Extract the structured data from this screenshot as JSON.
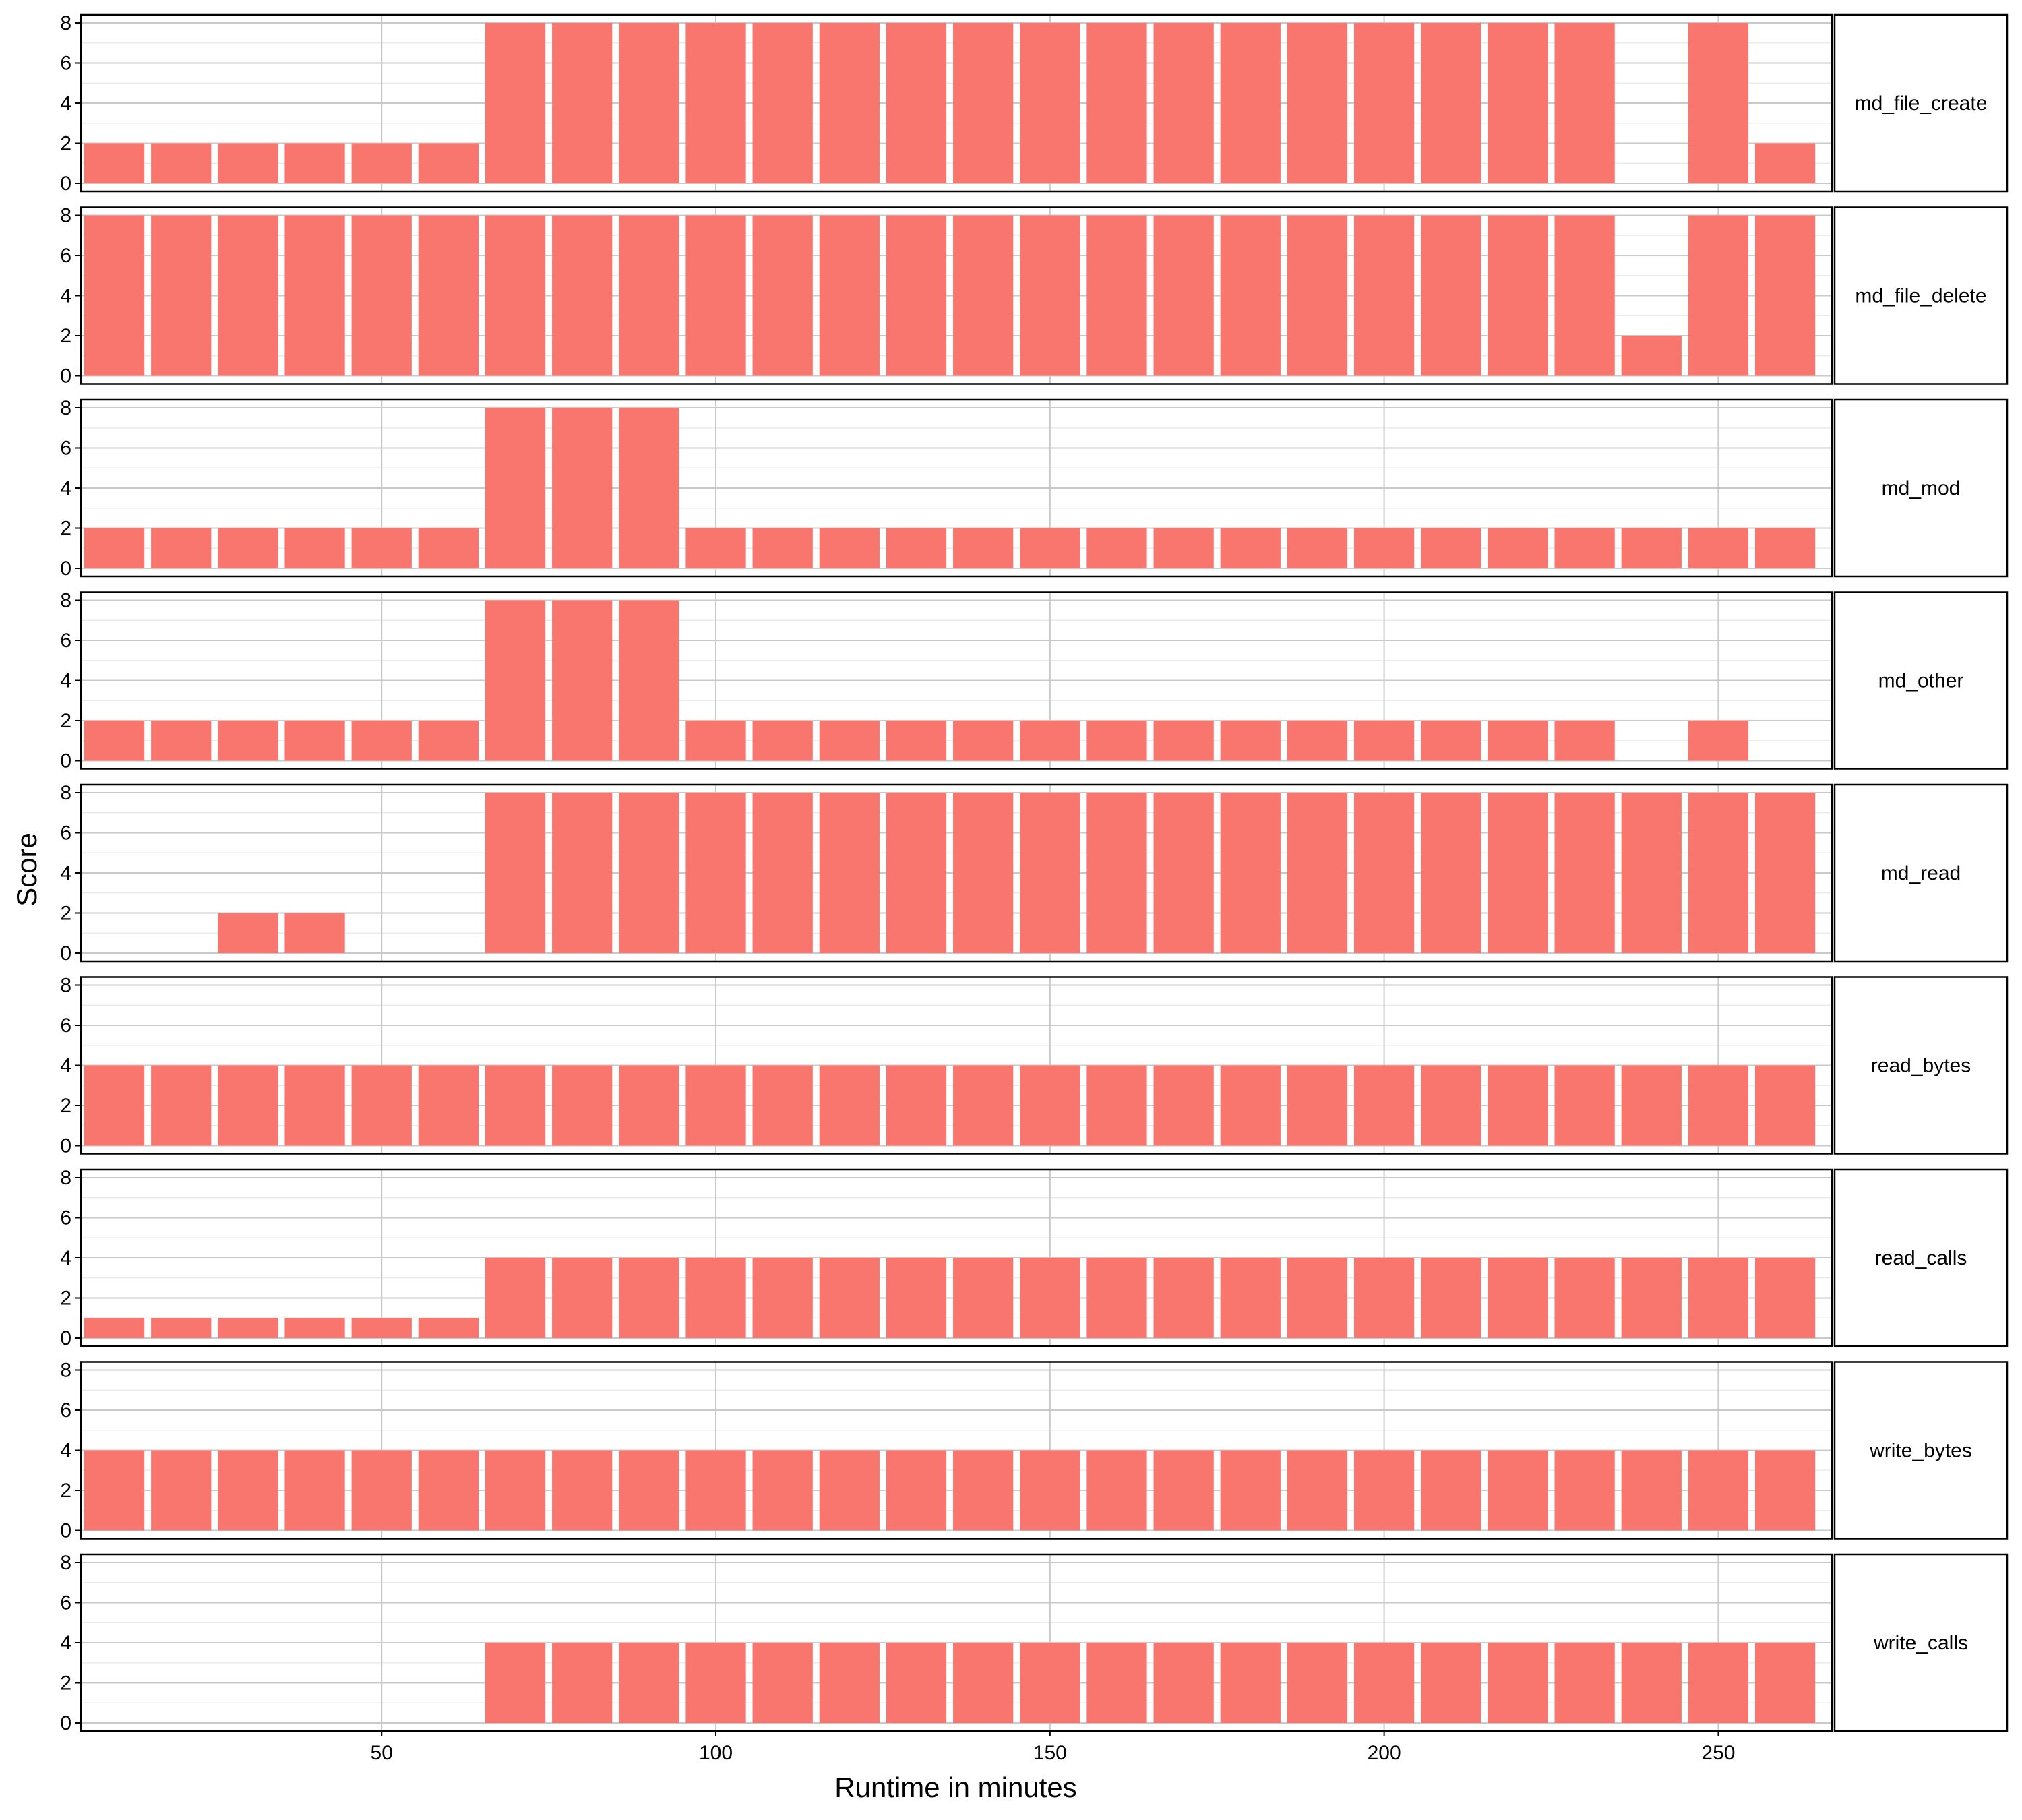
{
  "chart_data": {
    "type": "bar",
    "layout": "faceted-rows",
    "xlabel": "Runtime in minutes",
    "ylabel": "Score",
    "xlim": [
      5,
      267
    ],
    "ylim": [
      0,
      8
    ],
    "x_ticks": [
      50,
      100,
      150,
      200,
      250
    ],
    "y_ticks": [
      0,
      2,
      4,
      6,
      8
    ],
    "grid": true,
    "bar_color": "#F8766D",
    "x": [
      10,
      20,
      30,
      40,
      50,
      60,
      70,
      80,
      90,
      100,
      110,
      120,
      130,
      140,
      150,
      160,
      170,
      180,
      190,
      200,
      210,
      220,
      230,
      240,
      250,
      260
    ],
    "series": [
      {
        "name": "md_file_create",
        "values": [
          2,
          2,
          2,
          2,
          2,
          2,
          8,
          8,
          8,
          8,
          8,
          8,
          8,
          8,
          8,
          8,
          8,
          8,
          8,
          8,
          8,
          8,
          8,
          null,
          8,
          2
        ]
      },
      {
        "name": "md_file_delete",
        "values": [
          8,
          8,
          8,
          8,
          8,
          8,
          8,
          8,
          8,
          8,
          8,
          8,
          8,
          8,
          8,
          8,
          8,
          8,
          8,
          8,
          8,
          8,
          8,
          2,
          8,
          8
        ]
      },
      {
        "name": "md_mod",
        "values": [
          2,
          2,
          2,
          2,
          2,
          2,
          8,
          8,
          8,
          2,
          2,
          2,
          2,
          2,
          2,
          2,
          2,
          2,
          2,
          2,
          2,
          2,
          2,
          2,
          2,
          2
        ]
      },
      {
        "name": "md_other",
        "values": [
          2,
          2,
          2,
          2,
          2,
          2,
          8,
          8,
          8,
          2,
          2,
          2,
          2,
          2,
          2,
          2,
          2,
          2,
          2,
          2,
          2,
          2,
          2,
          null,
          2,
          null
        ]
      },
      {
        "name": "md_read",
        "values": [
          null,
          null,
          2,
          2,
          null,
          null,
          8,
          8,
          8,
          8,
          8,
          8,
          8,
          8,
          8,
          8,
          8,
          8,
          8,
          8,
          8,
          8,
          8,
          8,
          8,
          8
        ]
      },
      {
        "name": "read_bytes",
        "values": [
          4,
          4,
          4,
          4,
          4,
          4,
          4,
          4,
          4,
          4,
          4,
          4,
          4,
          4,
          4,
          4,
          4,
          4,
          4,
          4,
          4,
          4,
          4,
          4,
          4,
          4
        ]
      },
      {
        "name": "read_calls",
        "values": [
          1,
          1,
          1,
          1,
          1,
          1,
          4,
          4,
          4,
          4,
          4,
          4,
          4,
          4,
          4,
          4,
          4,
          4,
          4,
          4,
          4,
          4,
          4,
          4,
          4,
          4
        ]
      },
      {
        "name": "write_bytes",
        "values": [
          4,
          4,
          4,
          4,
          4,
          4,
          4,
          4,
          4,
          4,
          4,
          4,
          4,
          4,
          4,
          4,
          4,
          4,
          4,
          4,
          4,
          4,
          4,
          4,
          4,
          4
        ]
      },
      {
        "name": "write_calls",
        "values": [
          null,
          null,
          null,
          null,
          null,
          null,
          4,
          4,
          4,
          4,
          4,
          4,
          4,
          4,
          4,
          4,
          4,
          4,
          4,
          4,
          4,
          4,
          4,
          4,
          4,
          4
        ]
      }
    ]
  }
}
